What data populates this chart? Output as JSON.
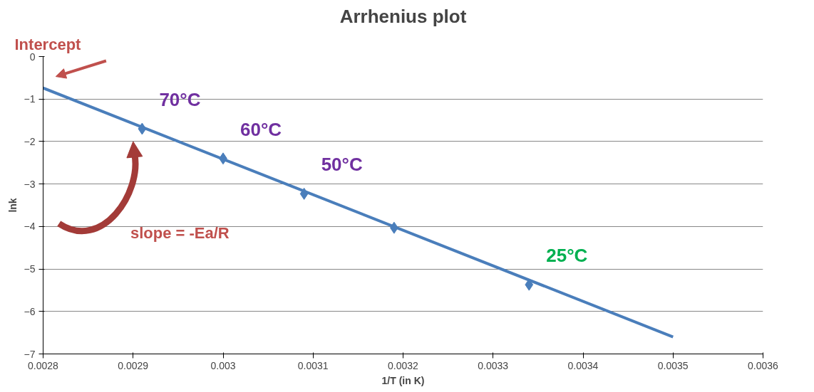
{
  "chart_data": {
    "type": "line",
    "title": "Arrhenius plot",
    "xlabel": "1/T (in K)",
    "ylabel": "lnk",
    "xlim": [
      0.0028,
      0.0036
    ],
    "xticks": [
      0.0028,
      0.0029,
      0.003,
      0.0031,
      0.0032,
      0.0033,
      0.0034,
      0.0035,
      0.0036
    ],
    "ylim": [
      -7,
      0
    ],
    "yticks": [
      0,
      -1,
      -2,
      -3,
      -4,
      -5,
      -6,
      -7
    ],
    "grid": "y",
    "marker": "diamond",
    "series": [
      {
        "color": "#4a7ebb",
        "x": [
          0.0028,
          0.0035
        ],
        "values": [
          -0.74,
          -6.6
        ],
        "marker": "none"
      },
      {
        "type": "scatter",
        "color": "#4a7ebb",
        "x": [
          0.00291,
          0.003,
          0.00309,
          0.00319,
          0.00334
        ],
        "values": [
          -1.7,
          -2.4,
          -3.23,
          -4.03,
          -5.37
        ]
      }
    ],
    "annotations": [
      {
        "text": "Intercept",
        "x": 0.0028,
        "y": -0.74
      },
      {
        "text": "70°C",
        "x": 0.00291,
        "y": -1.7
      },
      {
        "text": "60°C",
        "x": 0.003,
        "y": -2.4
      },
      {
        "text": "50°C",
        "x": 0.00309,
        "y": -3.23
      },
      {
        "text": "25°C",
        "x": 0.00334,
        "y": -5.37
      },
      "slope = -Ea/R"
    ]
  }
}
